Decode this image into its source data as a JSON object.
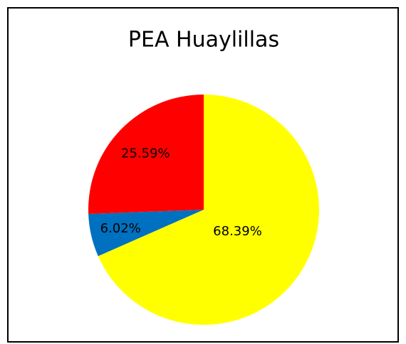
{
  "chart_data": {
    "type": "pie",
    "title": "PEA  Huaylillas",
    "values": [
      68.39,
      6.02,
      25.59
    ],
    "value_labels": [
      "68.39%",
      "6.02%",
      "25.59%"
    ],
    "colors": [
      "#ffff00",
      "#0070c0",
      "#ff0000"
    ]
  }
}
